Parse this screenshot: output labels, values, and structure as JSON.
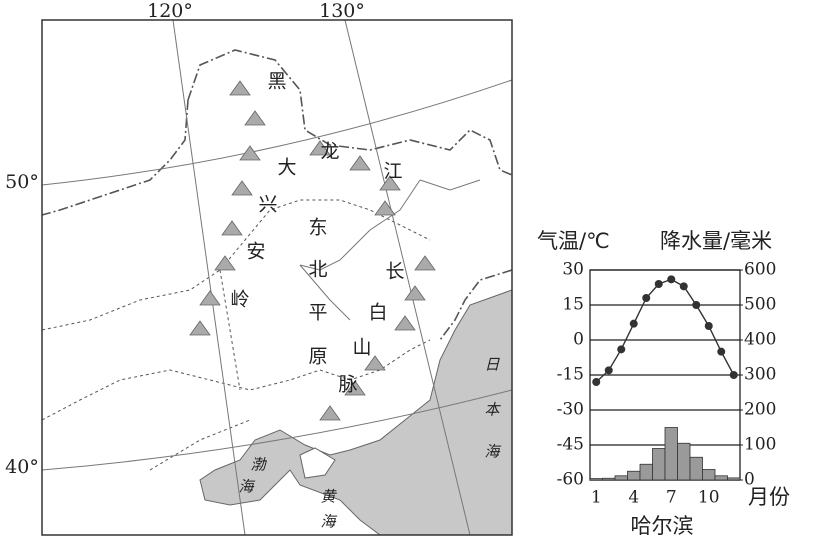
{
  "map": {
    "lon_labels": [
      "120°",
      "130°"
    ],
    "lat_labels": [
      "50°",
      "40°"
    ],
    "places": [
      [
        "黑",
        "龙",
        "江"
      ],
      [
        "大",
        "兴",
        "安",
        "岭"
      ],
      [
        "东",
        "北",
        "平",
        "原"
      ],
      [
        "长",
        "白",
        "山",
        "脉"
      ],
      [
        "日",
        "本",
        "海"
      ],
      [
        "渤",
        "海"
      ],
      [
        "黄",
        "海"
      ]
    ]
  },
  "chart_data": {
    "type": "bar_line",
    "title": "哈尔滨",
    "y_label": "气温/℃",
    "y2_label": "降水量/毫米",
    "x_label": "月份",
    "categories": [
      "1",
      null,
      null,
      "4",
      null,
      null,
      "7",
      null,
      null,
      "10",
      null,
      null
    ],
    "series": [
      {
        "type": "bar",
        "axis": "y2",
        "color": "#9a9a9a",
        "values": [
          4,
          5,
          12,
          25,
          45,
          90,
          150,
          105,
          65,
          30,
          12,
          6
        ]
      },
      {
        "type": "line",
        "color": "#333333",
        "values": [
          -18,
          -13,
          -4,
          7,
          18,
          24,
          26,
          23,
          15,
          6,
          -5,
          -15
        ]
      }
    ],
    "ylim": [
      -60,
      30
    ],
    "yticks": [
      -60,
      -45,
      -30,
      -15,
      0,
      15,
      30
    ],
    "y2lim": [
      0,
      600
    ],
    "y2ticks": [
      0,
      100,
      200,
      300,
      400,
      500,
      600
    ],
    "grid": true
  }
}
